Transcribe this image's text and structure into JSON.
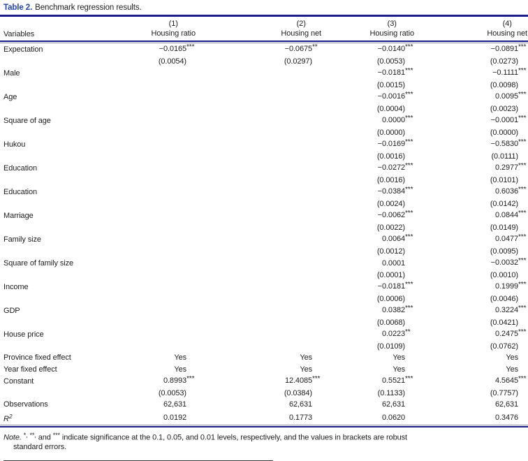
{
  "colors": {
    "navy": "#1b1c8a",
    "titleblue": "#2342a6",
    "ink": "#1c1c1c",
    "rulethin": "#8f8fae"
  },
  "table": {
    "title_label": "Table 2.",
    "title_text": "Benchmark regression results.",
    "row_header": "Variables",
    "columns": [
      {
        "num": "(1)",
        "name": "Housing ratio"
      },
      {
        "num": "(2)",
        "name": "Housing net"
      },
      {
        "num": "(3)",
        "name": "Housing ratio"
      },
      {
        "num": "(4)",
        "name": "Housing net"
      }
    ],
    "rows": [
      {
        "label": "Expectation",
        "values": [
          "−0.0165",
          "−0.0675",
          "−0.0140",
          "−0.0891"
        ],
        "stars": [
          "***",
          "**",
          "***",
          "***"
        ],
        "se": [
          "(0.0054)",
          "(0.0297)",
          "(0.0053)",
          "(0.0273)"
        ]
      },
      {
        "label": "Male",
        "values": [
          "",
          "",
          "−0.0181",
          "−0.1111"
        ],
        "stars": [
          "",
          "",
          "***",
          "***"
        ],
        "se": [
          "",
          "",
          "(0.0015)",
          "(0.0098)"
        ]
      },
      {
        "label": "Age",
        "values": [
          "",
          "",
          "−0.0016",
          "0.0095"
        ],
        "stars": [
          "",
          "",
          "***",
          "***"
        ],
        "se": [
          "",
          "",
          "(0.0004)",
          "(0.0023)"
        ]
      },
      {
        "label": "Square of age",
        "values": [
          "",
          "",
          "0.0000",
          "−0.0001"
        ],
        "stars": [
          "",
          "",
          "***",
          "***"
        ],
        "se": [
          "",
          "",
          "(0.0000)",
          "(0.0000)"
        ]
      },
      {
        "label": "Hukou",
        "values": [
          "",
          "",
          "−0.0169",
          "−0.5830"
        ],
        "stars": [
          "",
          "",
          "***",
          "***"
        ],
        "se": [
          "",
          "",
          "(0.0016)",
          "(0.0111)"
        ]
      },
      {
        "label": "Education",
        "values": [
          "",
          "",
          "−0.0272",
          "0.2977"
        ],
        "stars": [
          "",
          "",
          "***",
          "***"
        ],
        "se": [
          "",
          "",
          "(0.0016)",
          "(0.0101)"
        ]
      },
      {
        "label": "Education",
        "values": [
          "",
          "",
          "−0.0384",
          "0.6036"
        ],
        "stars": [
          "",
          "",
          "***",
          "***"
        ],
        "se": [
          "",
          "",
          "(0.0024)",
          "(0.0142)"
        ]
      },
      {
        "label": "Marriage",
        "values": [
          "",
          "",
          "−0.0062",
          "0.0844"
        ],
        "stars": [
          "",
          "",
          "***",
          "***"
        ],
        "se": [
          "",
          "",
          "(0.0022)",
          "(0.0149)"
        ]
      },
      {
        "label": "Family size",
        "values": [
          "",
          "",
          "0.0064",
          "0.0477"
        ],
        "stars": [
          "",
          "",
          "***",
          "***"
        ],
        "se": [
          "",
          "",
          "(0.0012)",
          "(0.0095)"
        ]
      },
      {
        "label": "Square of family size",
        "values": [
          "",
          "",
          "0.0001",
          "−0.0032"
        ],
        "stars": [
          "",
          "",
          "",
          "***"
        ],
        "se": [
          "",
          "",
          "(0.0001)",
          "(0.0010)"
        ]
      },
      {
        "label": "Income",
        "values": [
          "",
          "",
          "−0.0181",
          "0.1999"
        ],
        "stars": [
          "",
          "",
          "***",
          "***"
        ],
        "se": [
          "",
          "",
          "(0.0006)",
          "(0.0046)"
        ]
      },
      {
        "label": "GDP",
        "values": [
          "",
          "",
          "0.0382",
          "0.3224"
        ],
        "stars": [
          "",
          "",
          "***",
          "***"
        ],
        "se": [
          "",
          "",
          "(0.0068)",
          "(0.0421)"
        ]
      },
      {
        "label": "House price",
        "values": [
          "",
          "",
          "0.0223",
          "0.2475"
        ],
        "stars": [
          "",
          "",
          "**",
          "***"
        ],
        "se": [
          "",
          "",
          "(0.0109)",
          "(0.0762)"
        ]
      },
      {
        "label": "Province fixed effect",
        "values": [
          "Yes",
          "Yes",
          "Yes",
          "Yes"
        ]
      },
      {
        "label": "Year fixed effect",
        "values": [
          "Yes",
          "Yes",
          "Yes",
          "Yes"
        ]
      },
      {
        "label": "Constant",
        "values": [
          "0.8993",
          "12.4085",
          "0.5521",
          "4.5645"
        ],
        "stars": [
          "***",
          "***",
          "***",
          "***"
        ],
        "se": [
          "(0.0053)",
          "(0.0384)",
          "(0.1133)",
          "(0.7757)"
        ]
      },
      {
        "label": "Observations",
        "values": [
          "62,631",
          "62,631",
          "62,631",
          "62,631"
        ]
      },
      {
        "label": "R",
        "label_sup": "2",
        "label_italic": true,
        "values": [
          "0.0192",
          "0.1773",
          "0.0620",
          "0.3476"
        ]
      }
    ]
  },
  "note": {
    "label": "Note. ",
    "star1": "*,",
    "sep1": " ",
    "star2": "**,",
    "sep2": " and ",
    "star3": "***",
    "line1_rest": " indicate significance at the 0.1, 0.05, and 0.01 levels, respectively, and the values in brackets are robust",
    "line2": "standard errors."
  }
}
